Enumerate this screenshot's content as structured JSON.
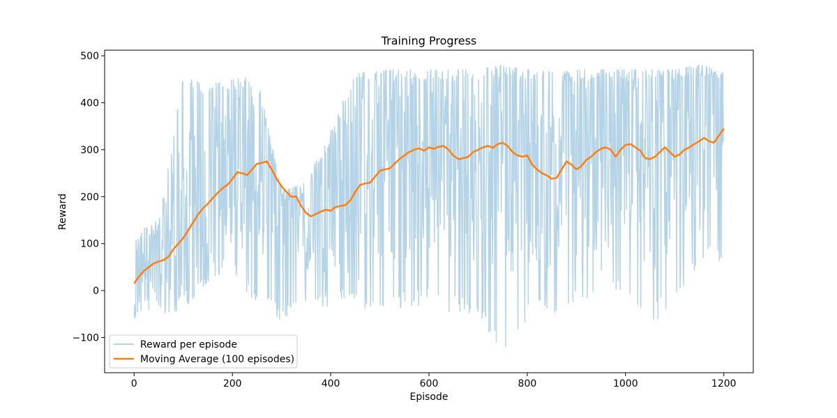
{
  "chart_data": {
    "type": "line",
    "title": "Training Progress",
    "xlabel": "Episode",
    "ylabel": "Reward",
    "xlim": [
      -60,
      1260
    ],
    "ylim": [
      -175,
      512
    ],
    "x_ticks": [
      0,
      200,
      400,
      600,
      800,
      1000,
      1200
    ],
    "x_tick_labels": [
      "0",
      "200",
      "400",
      "600",
      "800",
      "1000",
      "1200"
    ],
    "y_ticks": [
      -100,
      0,
      100,
      200,
      300,
      400,
      500
    ],
    "y_tick_labels": [
      "−100",
      "0",
      "100",
      "200",
      "300",
      "400",
      "500"
    ],
    "grid": false,
    "legend_position": "lower-left",
    "series": [
      {
        "name": "Reward per episode",
        "color": "#b5d3e7",
        "episodes": 1200,
        "envelope_x": [
          0,
          50,
          100,
          150,
          200,
          250,
          300,
          350,
          400,
          450,
          500,
          550,
          600,
          650,
          700,
          750,
          800,
          850,
          900,
          950,
          1000,
          1050,
          1100,
          1150,
          1200
        ],
        "envelope_min": [
          -60,
          -50,
          -40,
          20,
          30,
          -30,
          -70,
          -30,
          -40,
          -30,
          -50,
          -40,
          -30,
          -50,
          -50,
          -145,
          -60,
          -50,
          -40,
          10,
          -30,
          -80,
          -20,
          50,
          60
        ],
        "envelope_max": [
          130,
          150,
          460,
          440,
          450,
          460,
          210,
          230,
          340,
          470,
          470,
          470,
          470,
          470,
          470,
          480,
          470,
          470,
          470,
          470,
          470,
          470,
          470,
          480,
          470
        ]
      },
      {
        "name": "Moving Average (100 episodes)",
        "color": "#ff7f0e",
        "x": [
          0,
          10,
          20,
          30,
          40,
          50,
          60,
          70,
          80,
          90,
          100,
          110,
          120,
          130,
          140,
          150,
          160,
          170,
          180,
          190,
          200,
          210,
          220,
          230,
          240,
          250,
          260,
          270,
          280,
          290,
          300,
          310,
          320,
          330,
          340,
          350,
          360,
          370,
          380,
          390,
          400,
          410,
          420,
          430,
          440,
          450,
          460,
          470,
          480,
          490,
          500,
          510,
          520,
          530,
          540,
          550,
          560,
          570,
          580,
          590,
          600,
          610,
          620,
          630,
          640,
          650,
          660,
          670,
          680,
          690,
          700,
          710,
          720,
          730,
          740,
          750,
          760,
          770,
          780,
          790,
          800,
          810,
          820,
          830,
          840,
          850,
          860,
          870,
          880,
          890,
          900,
          910,
          920,
          930,
          940,
          950,
          960,
          970,
          980,
          990,
          1000,
          1010,
          1020,
          1030,
          1040,
          1050,
          1060,
          1070,
          1080,
          1090,
          1100,
          1110,
          1120,
          1130,
          1140,
          1150,
          1160,
          1170,
          1180,
          1190,
          1200
        ],
        "values": [
          15,
          30,
          42,
          50,
          58,
          62,
          65,
          72,
          88,
          100,
          112,
          128,
          145,
          162,
          175,
          185,
          197,
          208,
          218,
          225,
          238,
          252,
          250,
          246,
          258,
          270,
          272,
          275,
          258,
          238,
          222,
          210,
          200,
          200,
          180,
          165,
          158,
          163,
          168,
          172,
          170,
          178,
          180,
          182,
          192,
          210,
          225,
          228,
          230,
          242,
          255,
          258,
          260,
          270,
          280,
          288,
          295,
          300,
          303,
          298,
          305,
          302,
          306,
          308,
          300,
          287,
          280,
          282,
          285,
          295,
          300,
          305,
          308,
          304,
          312,
          315,
          308,
          295,
          288,
          285,
          288,
          268,
          258,
          250,
          245,
          238,
          240,
          258,
          275,
          268,
          258,
          265,
          278,
          285,
          295,
          302,
          305,
          300,
          285,
          300,
          310,
          312,
          305,
          298,
          282,
          280,
          285,
          295,
          305,
          295,
          285,
          290,
          300,
          305,
          312,
          318,
          325,
          318,
          315,
          330,
          345
        ]
      }
    ]
  }
}
